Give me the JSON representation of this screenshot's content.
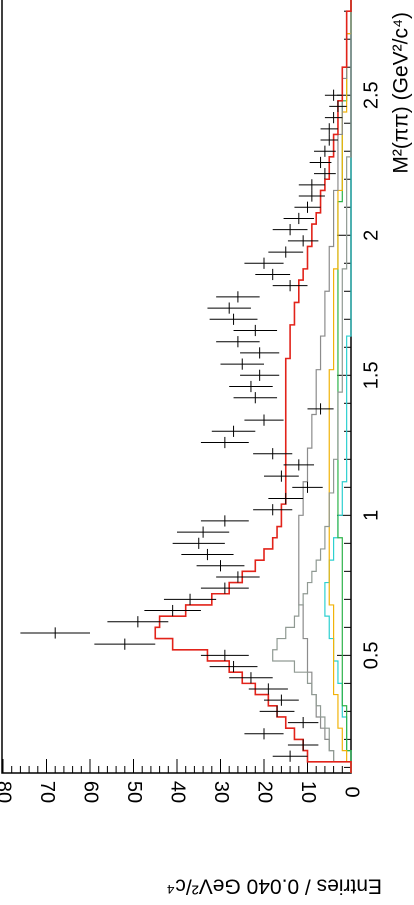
{
  "chart_data": {
    "type": "histogram",
    "orientation": "rotated-90-clockwise",
    "xlabel": "M²(ππ) (GeV²/c⁴)",
    "ylabel": "Entries / 0.040 GeV²/c⁴",
    "xlim": [
      0.08,
      2.84
    ],
    "ylim": [
      0,
      80
    ],
    "x_ticks": [
      0.5,
      1,
      1.5,
      2,
      2.5
    ],
    "x_tick_labels": [
      "0.5",
      "1",
      "1.5",
      "2",
      "2.5"
    ],
    "y_ticks": [
      0,
      10,
      20,
      30,
      40,
      50,
      60,
      70,
      80
    ],
    "y_tick_labels": [
      "0",
      "10",
      "20",
      "30",
      "40",
      "50",
      "60",
      "70",
      "80"
    ],
    "bin_width": 0.04,
    "data_points": {
      "x": [
        0.14,
        0.18,
        0.22,
        0.26,
        0.3,
        0.34,
        0.38,
        0.42,
        0.46,
        0.5,
        0.54,
        0.58,
        0.62,
        0.66,
        0.7,
        0.74,
        0.78,
        0.82,
        0.86,
        0.9,
        0.94,
        0.98,
        1.02,
        1.06,
        1.1,
        1.14,
        1.18,
        1.22,
        1.26,
        1.3,
        1.34,
        1.38,
        1.42,
        1.46,
        1.5,
        1.54,
        1.58,
        1.62,
        1.66,
        1.7,
        1.74,
        1.78,
        1.82,
        1.86,
        1.9,
        1.94,
        1.98,
        2.02,
        2.06,
        2.1,
        2.14,
        2.18,
        2.22,
        2.26,
        2.3,
        2.34,
        2.38,
        2.42,
        2.46,
        2.5
      ],
      "y": [
        14,
        11,
        20,
        11,
        17,
        16,
        19,
        23,
        27,
        29,
        52,
        68,
        49,
        41,
        37,
        29,
        26,
        30,
        33,
        35,
        34,
        29,
        18,
        15,
        10,
        16,
        12,
        18,
        29,
        27,
        20,
        7,
        22,
        23,
        21,
        25,
        21,
        26,
        22,
        27,
        28,
        26,
        14,
        18,
        20,
        15,
        11,
        14,
        12,
        10,
        9,
        9,
        6,
        7,
        6,
        5,
        5,
        4,
        3,
        4
      ],
      "errors": [
        4,
        3.5,
        4.5,
        3.5,
        4,
        4,
        4.5,
        5,
        5.5,
        5.5,
        7,
        8,
        7,
        6.5,
        6,
        5.5,
        5,
        5.5,
        6,
        6,
        6,
        5.5,
        4.5,
        4,
        3.5,
        4,
        3.5,
        4.5,
        5.5,
        5,
        4.5,
        3,
        5,
        5,
        4.5,
        5,
        4.5,
        5,
        5,
        5.5,
        5,
        5,
        4,
        4,
        4.5,
        4,
        3.5,
        4,
        3.5,
        3,
        3,
        3,
        2.5,
        2.5,
        2.5,
        2,
        2,
        2,
        2,
        2
      ]
    },
    "series": [
      {
        "name": "",
        "color": "#e2231a",
        "step": [
          0,
          10,
          11,
          13,
          15,
          17,
          19,
          22,
          25,
          28,
          33,
          41,
          45,
          44,
          38,
          32,
          28,
          25,
          22,
          20,
          18,
          17,
          16,
          16,
          15,
          15,
          15,
          15,
          15,
          15,
          15,
          15,
          15,
          15,
          15,
          15,
          15,
          14,
          14,
          14,
          13,
          13,
          12,
          12,
          11,
          10,
          10,
          9,
          9,
          8,
          7,
          7,
          6,
          5,
          5,
          4,
          4,
          3,
          3,
          3,
          2,
          2,
          2,
          1,
          1,
          1,
          1,
          1,
          0,
          0
        ]
      },
      {
        "name": "",
        "color": "#909a93",
        "step": [
          0,
          4,
          5,
          5,
          6,
          7,
          8,
          9,
          10,
          13,
          18,
          17,
          15,
          13,
          12,
          11,
          10,
          9,
          8,
          7,
          6,
          6,
          5,
          5,
          5,
          4,
          4,
          4,
          3,
          3,
          3,
          3,
          3,
          3,
          2,
          2,
          2,
          2,
          2,
          2,
          2,
          2,
          2,
          2,
          2,
          1,
          1,
          1,
          1,
          1,
          1,
          1,
          1,
          1,
          1,
          0,
          0,
          0,
          0,
          0,
          0,
          0,
          0,
          0,
          0,
          0,
          0,
          0,
          0,
          0
        ]
      },
      {
        "name": "",
        "color": "#8c8c8c",
        "step": [
          0,
          4,
          5,
          6,
          7,
          8,
          8,
          9,
          9,
          10,
          10,
          10,
          11,
          11,
          11,
          12,
          12,
          12,
          12,
          12,
          12,
          12,
          12,
          11,
          11,
          11,
          10,
          10,
          10,
          9,
          9,
          9,
          8,
          8,
          8,
          8,
          7,
          7,
          7,
          6,
          6,
          6,
          6,
          5,
          5,
          5,
          5,
          4,
          4,
          4,
          4,
          4,
          3,
          3,
          3,
          3,
          3,
          2,
          2,
          2,
          2,
          2,
          1,
          1,
          1,
          1,
          1,
          1,
          0,
          0
        ]
      },
      {
        "name": "",
        "color": "#f1b30a",
        "step": [
          0,
          1,
          2,
          2,
          3,
          3,
          3,
          4,
          4,
          4,
          4,
          4,
          4,
          4,
          4,
          5,
          5,
          5,
          5,
          5,
          5,
          5,
          5,
          5,
          5,
          5,
          5,
          5,
          5,
          5,
          5,
          5,
          5,
          5,
          5,
          5,
          4,
          4,
          4,
          4,
          4,
          4,
          4,
          4,
          4,
          3,
          3,
          3,
          3,
          3,
          3,
          3,
          2,
          2,
          2,
          2,
          2,
          2,
          2,
          1,
          1,
          1,
          1,
          1,
          1,
          1,
          0,
          0,
          0,
          0
        ]
      },
      {
        "name": "",
        "color": "#2db34a",
        "step": [
          0,
          0,
          1,
          1,
          1,
          1,
          2,
          2,
          2,
          2,
          2,
          2,
          2,
          2,
          2,
          2,
          2,
          2,
          2,
          2,
          2,
          3,
          3,
          3,
          3,
          3,
          3,
          3,
          3,
          3,
          3,
          3,
          3,
          3,
          3,
          3,
          3,
          3,
          3,
          3,
          3,
          3,
          3,
          3,
          3,
          3,
          3,
          3,
          3,
          3,
          3,
          2,
          2,
          2,
          2,
          2,
          2,
          2,
          2,
          2,
          1,
          1,
          1,
          1,
          1,
          1,
          0,
          0,
          0,
          0
        ]
      },
      {
        "name": "",
        "color": "#2dd0d0",
        "step": [
          0,
          0,
          1,
          1,
          1,
          2,
          2,
          2,
          3,
          3,
          4,
          4,
          5,
          5,
          6,
          6,
          6,
          5,
          5,
          4,
          4,
          3,
          3,
          2,
          2,
          2,
          1,
          1,
          1,
          1,
          1,
          1,
          1,
          1,
          1,
          1,
          1,
          1,
          1,
          0,
          0,
          0,
          0,
          0,
          0,
          0,
          0,
          0,
          0,
          0,
          0,
          0,
          0,
          0,
          0,
          0,
          0,
          0,
          0,
          0,
          0,
          0,
          0,
          0,
          0,
          0,
          0,
          0,
          0,
          0
        ]
      }
    ],
    "grid": false,
    "legend": "none"
  }
}
